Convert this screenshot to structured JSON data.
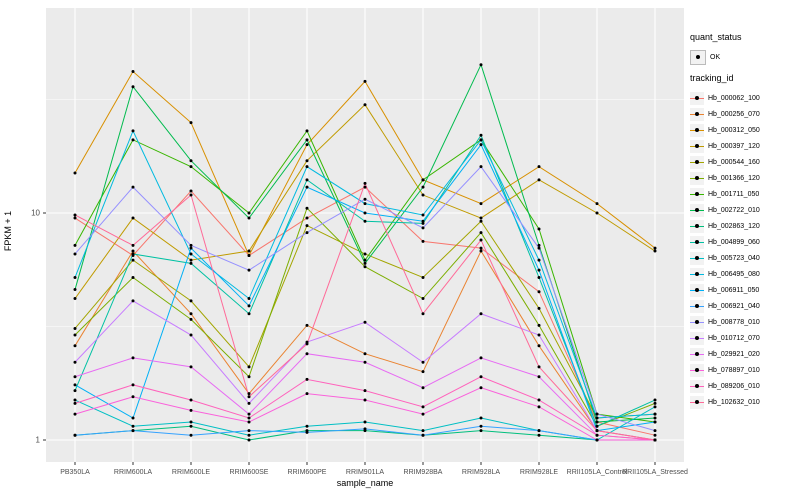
{
  "figure": {
    "background": "#FFFFFF",
    "panel_background": "#EBEBEB",
    "grid_color": "#FFFFFF",
    "tick_label_color": "#4D4D4D",
    "point_color": "#000000"
  },
  "legend": {
    "quant_status": {
      "title": "quant_status",
      "item_label": "OK"
    },
    "tracking_id": {
      "title": "tracking_id"
    }
  },
  "chart_data": {
    "type": "line",
    "title": "",
    "xlabel": "sample_name",
    "ylabel": "FPKM + 1",
    "y_scale": "log10",
    "y_ticks": [
      1,
      10
    ],
    "y_minor_gridlines": [
      3.16,
      31.6
    ],
    "ylim": [
      0.8,
      80
    ],
    "grid": true,
    "legend_position": "right",
    "categories": [
      "PB350LA",
      "RRIM600LA",
      "RRIM600LE",
      "RRIM600SE",
      "RRIM600PE",
      "RRIM901LA",
      "RRIM928BA",
      "RRIM928LA",
      "RRIM928LE",
      "RRII105LA_Control",
      "RRII105LA_Stressed"
    ],
    "series": [
      {
        "name": "Hb_000062_100",
        "color": "#F8766D",
        "values": [
          9.5,
          6.5,
          12.5,
          6.5,
          9.5,
          13,
          7.5,
          7,
          4.5,
          1.2,
          1.05
        ]
      },
      {
        "name": "Hb_000256_070",
        "color": "#EA8331",
        "values": [
          2.6,
          6.8,
          3.6,
          1.6,
          3.2,
          2.4,
          2.0,
          6.8,
          2.6,
          1.1,
          1.0
        ]
      },
      {
        "name": "Hb_000312_050",
        "color": "#D89000",
        "values": [
          15,
          42,
          25,
          6.5,
          20,
          38,
          14,
          11,
          16,
          11,
          7
        ]
      },
      {
        "name": "Hb_000397_120",
        "color": "#C09B00",
        "values": [
          4.2,
          9.5,
          6.2,
          6.8,
          17,
          30,
          12,
          9.5,
          14,
          10,
          6.8
        ]
      },
      {
        "name": "Hb_000544_160",
        "color": "#A3A500",
        "values": [
          3.1,
          6.2,
          4.1,
          2.1,
          8.8,
          6.6,
          5.2,
          9.2,
          3.8,
          1.25,
          1.3
        ]
      },
      {
        "name": "Hb_001366_120",
        "color": "#7CAE00",
        "values": [
          2.9,
          5.2,
          3.4,
          1.9,
          10.5,
          5.8,
          4.2,
          8.2,
          3.2,
          1.15,
          1.45
        ]
      },
      {
        "name": "Hb_001711_050",
        "color": "#39B600",
        "values": [
          7.2,
          21,
          16,
          10,
          23,
          6.2,
          14,
          21,
          8.5,
          1.3,
          1.2
        ]
      },
      {
        "name": "Hb_002722_010",
        "color": "#00BB4E",
        "values": [
          4.6,
          36,
          17,
          9.5,
          21,
          6.0,
          13,
          45,
          7.2,
          1.2,
          1.25
        ]
      },
      {
        "name": "Hb_002863_120",
        "color": "#00BF7D",
        "values": [
          1.05,
          1.1,
          1.15,
          1.0,
          1.1,
          1.1,
          1.05,
          1.1,
          1.05,
          1.0,
          1.0
        ]
      },
      {
        "name": "Hb_004899_060",
        "color": "#00C1A3",
        "values": [
          1.65,
          6.6,
          6.0,
          3.6,
          14,
          9.2,
          9.0,
          22,
          5.2,
          1.15,
          1.5
        ]
      },
      {
        "name": "Hb_005723_040",
        "color": "#00BFC4",
        "values": [
          1.5,
          1.15,
          1.2,
          1.05,
          1.15,
          1.2,
          1.1,
          1.25,
          1.1,
          1.0,
          1.4
        ]
      },
      {
        "name": "Hb_006495_080",
        "color": "#00BAE0",
        "values": [
          5.2,
          23,
          6.6,
          4.2,
          16,
          11,
          9.8,
          21,
          6.2,
          1.25,
          1.3
        ]
      },
      {
        "name": "Hb_006911_050",
        "color": "#00B0F6",
        "values": [
          1.75,
          1.25,
          7.0,
          3.9,
          13,
          10,
          9.2,
          20,
          5.6,
          1.1,
          1.2
        ]
      },
      {
        "name": "Hb_006921_040",
        "color": "#35A2FF",
        "values": [
          1.05,
          1.1,
          1.05,
          1.1,
          1.08,
          1.12,
          1.05,
          1.15,
          1.1,
          1.0,
          1.0
        ]
      },
      {
        "name": "Hb_008778_010",
        "color": "#9590FF",
        "values": [
          6.6,
          13,
          7.2,
          5.6,
          8.2,
          11.5,
          8.6,
          16,
          7.0,
          1.3,
          1.1
        ]
      },
      {
        "name": "Hb_010712_070",
        "color": "#C77CFF",
        "values": [
          2.2,
          4.1,
          2.9,
          1.45,
          2.7,
          3.3,
          2.2,
          3.6,
          2.9,
          1.1,
          1.0
        ]
      },
      {
        "name": "Hb_029921_020",
        "color": "#E76BF3",
        "values": [
          1.9,
          2.3,
          2.1,
          1.3,
          2.4,
          2.2,
          1.7,
          2.3,
          1.9,
          1.05,
          1.0
        ]
      },
      {
        "name": "Hb_078897_010",
        "color": "#FA62DB",
        "values": [
          1.3,
          1.55,
          1.35,
          1.2,
          1.6,
          1.5,
          1.3,
          1.7,
          1.4,
          1.0,
          1.0
        ]
      },
      {
        "name": "Hb_089206_010",
        "color": "#FF62BC",
        "values": [
          1.45,
          1.75,
          1.5,
          1.25,
          1.85,
          1.65,
          1.4,
          1.9,
          1.5,
          1.05,
          1.0
        ]
      },
      {
        "name": "Hb_102632_010",
        "color": "#FF6A98",
        "values": [
          9.8,
          7.2,
          12,
          1.55,
          2.65,
          13.5,
          3.6,
          7.6,
          2.1,
          1.1,
          1.0
        ]
      }
    ]
  }
}
